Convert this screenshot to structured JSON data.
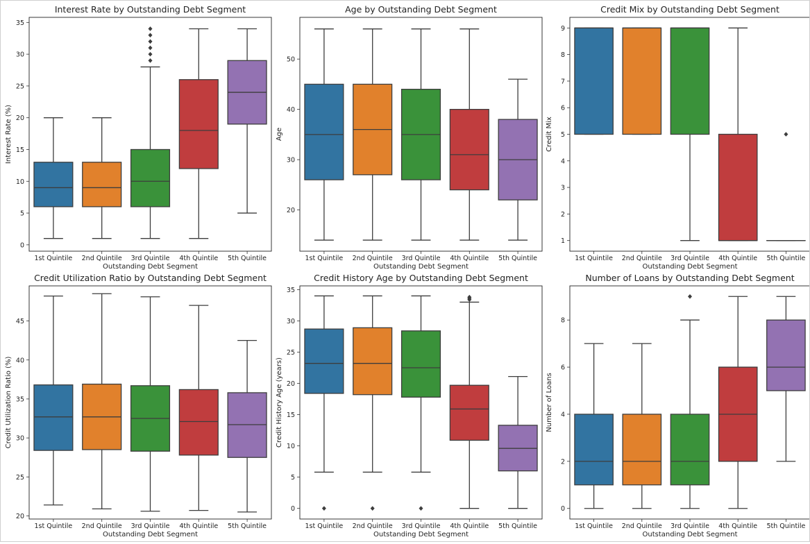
{
  "figure": {
    "name": "boxplot-grid"
  },
  "chart_data": [
    {
      "type": "boxplot",
      "title": "Interest Rate by Outstanding Debt Segment",
      "xlabel": "Outstanding Debt Segment",
      "ylabel": "Interest Rate (%)",
      "categories": [
        "1st Quintile",
        "2nd Quintile",
        "3rd Quintile",
        "4th Quintile",
        "5th Quintile"
      ],
      "ylim": [
        -1,
        35.8
      ],
      "yticks": [
        0,
        5,
        10,
        15,
        20,
        25,
        30,
        35
      ],
      "colors": [
        "#3274a1",
        "#e1812c",
        "#3a923a",
        "#c03d3e",
        "#9372b2"
      ],
      "boxes": [
        {
          "whislo": 1,
          "q1": 6,
          "med": 9,
          "q3": 13,
          "whishi": 20,
          "fliers": []
        },
        {
          "whislo": 1,
          "q1": 6,
          "med": 9,
          "q3": 13,
          "whishi": 20,
          "fliers": []
        },
        {
          "whislo": 1,
          "q1": 6,
          "med": 10,
          "q3": 15,
          "whishi": 28,
          "fliers": [
            29,
            30,
            31,
            32,
            33,
            34
          ]
        },
        {
          "whislo": 1,
          "q1": 12,
          "med": 18,
          "q3": 26,
          "whishi": 34,
          "fliers": []
        },
        {
          "whislo": 5,
          "q1": 19,
          "med": 24,
          "q3": 29,
          "whishi": 34,
          "fliers": []
        }
      ]
    },
    {
      "type": "boxplot",
      "title": "Age by Outstanding Debt Segment",
      "xlabel": "Outstanding Debt Segment",
      "ylabel": "Age",
      "categories": [
        "1st Quintile",
        "2nd Quintile",
        "3rd Quintile",
        "4th Quintile",
        "5th Quintile"
      ],
      "ylim": [
        11.8,
        58.3
      ],
      "yticks": [
        20,
        30,
        40,
        50
      ],
      "colors": [
        "#3274a1",
        "#e1812c",
        "#3a923a",
        "#c03d3e",
        "#9372b2"
      ],
      "boxes": [
        {
          "whislo": 14,
          "q1": 26,
          "med": 35,
          "q3": 45,
          "whishi": 56,
          "fliers": []
        },
        {
          "whislo": 14,
          "q1": 27,
          "med": 36,
          "q3": 45,
          "whishi": 56,
          "fliers": []
        },
        {
          "whislo": 14,
          "q1": 26,
          "med": 35,
          "q3": 44,
          "whishi": 56,
          "fliers": []
        },
        {
          "whislo": 14,
          "q1": 24,
          "med": 31,
          "q3": 40,
          "whishi": 56,
          "fliers": []
        },
        {
          "whislo": 14,
          "q1": 22,
          "med": 30,
          "q3": 38,
          "whishi": 46,
          "fliers": []
        }
      ]
    },
    {
      "type": "boxplot",
      "title": "Credit Mix by Outstanding Debt Segment",
      "xlabel": "Outstanding Debt Segment",
      "ylabel": "Credit Mix",
      "categories": [
        "1st Quintile",
        "2nd Quintile",
        "3rd Quintile",
        "4th Quintile",
        "5th Quintile"
      ],
      "ylim": [
        0.6,
        9.4
      ],
      "yticks": [
        1,
        2,
        3,
        4,
        5,
        6,
        7,
        8,
        9
      ],
      "colors": [
        "#3274a1",
        "#e1812c",
        "#3a923a",
        "#c03d3e",
        "#9372b2"
      ],
      "boxes": [
        {
          "whislo": 5,
          "q1": 5,
          "med": 9,
          "q3": 9,
          "whishi": 9,
          "fliers": []
        },
        {
          "whislo": 5,
          "q1": 5,
          "med": 9,
          "q3": 9,
          "whishi": 9,
          "fliers": []
        },
        {
          "whislo": 1,
          "q1": 5,
          "med": 9,
          "q3": 9,
          "whishi": 9,
          "fliers": []
        },
        {
          "whislo": 1,
          "q1": 1,
          "med": 1,
          "q3": 5,
          "whishi": 9,
          "fliers": []
        },
        {
          "whislo": 1,
          "q1": 1,
          "med": 1,
          "q3": 1,
          "whishi": 1,
          "fliers": [
            5
          ]
        }
      ]
    },
    {
      "type": "boxplot",
      "title": "Credit Utilization Ratio by Outstanding Debt Segment",
      "xlabel": "Outstanding Debt Segment",
      "ylabel": "Credit Utilization Ratio (%)",
      "categories": [
        "1st Quintile",
        "2nd Quintile",
        "3rd Quintile",
        "4th Quintile",
        "5th Quintile"
      ],
      "ylim": [
        19.6,
        49.5
      ],
      "yticks": [
        20,
        25,
        30,
        35,
        40,
        45
      ],
      "colors": [
        "#3274a1",
        "#e1812c",
        "#3a923a",
        "#c03d3e",
        "#9372b2"
      ],
      "boxes": [
        {
          "whislo": 21.4,
          "q1": 28.4,
          "med": 32.7,
          "q3": 36.8,
          "whishi": 48.2,
          "fliers": []
        },
        {
          "whislo": 20.9,
          "q1": 28.5,
          "med": 32.7,
          "q3": 36.9,
          "whishi": 48.5,
          "fliers": []
        },
        {
          "whislo": 20.6,
          "q1": 28.3,
          "med": 32.5,
          "q3": 36.7,
          "whishi": 48.1,
          "fliers": []
        },
        {
          "whislo": 20.7,
          "q1": 27.8,
          "med": 32.1,
          "q3": 36.2,
          "whishi": 47.0,
          "fliers": []
        },
        {
          "whislo": 20.5,
          "q1": 27.5,
          "med": 31.7,
          "q3": 35.8,
          "whishi": 42.5,
          "fliers": []
        }
      ]
    },
    {
      "type": "boxplot",
      "title": "Credit History Age by Outstanding Debt Segment",
      "xlabel": "Outstanding Debt Segment",
      "ylabel": "Credit History Age (years)",
      "categories": [
        "1st Quintile",
        "2nd Quintile",
        "3rd Quintile",
        "4th Quintile",
        "5th Quintile"
      ],
      "ylim": [
        -1.7,
        35.6
      ],
      "yticks": [
        0,
        5,
        10,
        15,
        20,
        25,
        30,
        35
      ],
      "colors": [
        "#3274a1",
        "#e1812c",
        "#3a923a",
        "#c03d3e",
        "#9372b2"
      ],
      "boxes": [
        {
          "whislo": 5.8,
          "q1": 18.4,
          "med": 23.2,
          "q3": 28.7,
          "whishi": 34,
          "fliers": [
            0
          ]
        },
        {
          "whislo": 5.8,
          "q1": 18.2,
          "med": 23.2,
          "q3": 28.9,
          "whishi": 34,
          "fliers": [
            0
          ]
        },
        {
          "whislo": 5.8,
          "q1": 17.8,
          "med": 22.5,
          "q3": 28.4,
          "whishi": 34,
          "fliers": [
            0
          ]
        },
        {
          "whislo": 0,
          "q1": 10.9,
          "med": 15.9,
          "q3": 19.7,
          "whishi": 33.0,
          "fliers": [
            33.4,
            33.6,
            33.8
          ]
        },
        {
          "whislo": 0,
          "q1": 6.0,
          "med": 9.6,
          "q3": 13.3,
          "whishi": 21.1,
          "fliers": []
        }
      ]
    },
    {
      "type": "boxplot",
      "title": "Number of Loans by Outstanding Debt Segment",
      "xlabel": "Outstanding Debt Segment",
      "ylabel": "Number of Loans",
      "categories": [
        "1st Quintile",
        "2nd Quintile",
        "3rd Quintile",
        "4th Quintile",
        "5th Quintile"
      ],
      "ylim": [
        -0.45,
        9.45
      ],
      "yticks": [
        0,
        2,
        4,
        6,
        8
      ],
      "colors": [
        "#3274a1",
        "#e1812c",
        "#3a923a",
        "#c03d3e",
        "#9372b2"
      ],
      "boxes": [
        {
          "whislo": 0,
          "q1": 1,
          "med": 2,
          "q3": 4,
          "whishi": 7,
          "fliers": []
        },
        {
          "whislo": 0,
          "q1": 1,
          "med": 2,
          "q3": 4,
          "whishi": 7,
          "fliers": []
        },
        {
          "whislo": 0,
          "q1": 1,
          "med": 2,
          "q3": 4,
          "whishi": 8,
          "fliers": [
            9
          ]
        },
        {
          "whislo": 0,
          "q1": 2,
          "med": 4,
          "q3": 6,
          "whishi": 9,
          "fliers": []
        },
        {
          "whislo": 2,
          "q1": 5,
          "med": 6,
          "q3": 8,
          "whishi": 9,
          "fliers": []
        }
      ]
    }
  ]
}
